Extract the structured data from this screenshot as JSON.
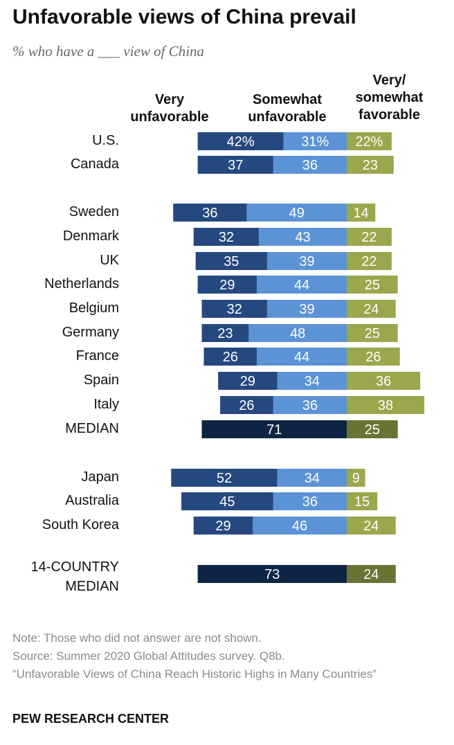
{
  "title": "Unfavorable views of China prevail",
  "subtitle": "% who have a ___ view of China",
  "column_headers": {
    "very_unfavorable": [
      "Very",
      "unfavorable"
    ],
    "somewhat_unfavorable": [
      "Somewhat",
      "unfavorable"
    ],
    "favorable": [
      "Very/",
      "somewhat",
      "favorable"
    ]
  },
  "colors": {
    "very_unfavorable": "#25497f",
    "somewhat_unfavorable": "#5b93d6",
    "favorable": "#9ca64c",
    "median_unfavorable": "#0e2444",
    "median_favorable": "#6a7234"
  },
  "chart_data": {
    "type": "bar",
    "orientation": "horizontal-diverging",
    "series": [
      {
        "name": "Very unfavorable"
      },
      {
        "name": "Somewhat unfavorable"
      },
      {
        "name": "Very/somewhat favorable"
      }
    ],
    "rows": [
      {
        "label": "U.S.",
        "very": 42,
        "somewhat": 31,
        "fav": 22,
        "very_label": "42%",
        "somewhat_label": "31%",
        "fav_label": "22%"
      },
      {
        "label": "Canada",
        "very": 37,
        "somewhat": 36,
        "fav": 23,
        "very_label": "37",
        "somewhat_label": "36",
        "fav_label": "23"
      },
      {
        "label": "Sweden",
        "very": 36,
        "somewhat": 49,
        "fav": 14,
        "very_label": "36",
        "somewhat_label": "49",
        "fav_label": "14"
      },
      {
        "label": "Denmark",
        "very": 32,
        "somewhat": 43,
        "fav": 22,
        "very_label": "32",
        "somewhat_label": "43",
        "fav_label": "22"
      },
      {
        "label": "UK",
        "very": 35,
        "somewhat": 39,
        "fav": 22,
        "very_label": "35",
        "somewhat_label": "39",
        "fav_label": "22"
      },
      {
        "label": "Netherlands",
        "very": 29,
        "somewhat": 44,
        "fav": 25,
        "very_label": "29",
        "somewhat_label": "44",
        "fav_label": "25"
      },
      {
        "label": "Belgium",
        "very": 32,
        "somewhat": 39,
        "fav": 24,
        "very_label": "32",
        "somewhat_label": "39",
        "fav_label": "24"
      },
      {
        "label": "Germany",
        "very": 23,
        "somewhat": 48,
        "fav": 25,
        "very_label": "23",
        "somewhat_label": "48",
        "fav_label": "25"
      },
      {
        "label": "France",
        "very": 26,
        "somewhat": 44,
        "fav": 26,
        "very_label": "26",
        "somewhat_label": "44",
        "fav_label": "26"
      },
      {
        "label": "Spain",
        "very": 29,
        "somewhat": 34,
        "fav": 36,
        "very_label": "29",
        "somewhat_label": "34",
        "fav_label": "36"
      },
      {
        "label": "Italy",
        "very": 26,
        "somewhat": 36,
        "fav": 38,
        "very_label": "26",
        "somewhat_label": "36",
        "fav_label": "38"
      },
      {
        "label": "MEDIAN",
        "median": true,
        "unfav": 71,
        "fav": 25,
        "unfav_label": "71",
        "fav_label": "25"
      },
      {
        "label": "Japan",
        "very": 52,
        "somewhat": 34,
        "fav": 9,
        "very_label": "52",
        "somewhat_label": "34",
        "fav_label": "9"
      },
      {
        "label": "Australia",
        "very": 45,
        "somewhat": 36,
        "fav": 15,
        "very_label": "45",
        "somewhat_label": "36",
        "fav_label": "15"
      },
      {
        "label": "South Korea",
        "very": 29,
        "somewhat": 46,
        "fav": 24,
        "very_label": "29",
        "somewhat_label": "46",
        "fav_label": "24"
      },
      {
        "label": "14-COUNTRY MEDIAN",
        "label_lines": [
          "14-COUNTRY",
          "MEDIAN"
        ],
        "median": true,
        "unfav": 73,
        "fav": 24,
        "unfav_label": "73",
        "fav_label": "24"
      }
    ]
  },
  "notes": {
    "note": "Note: Those who did not answer are not shown.",
    "source": "Source: Summer 2020 Global Attitudes survey. Q8b.",
    "report": "“Unfavorable Views of China Reach Historic Highs in Many Countries”"
  },
  "brand": "PEW RESEARCH CENTER"
}
